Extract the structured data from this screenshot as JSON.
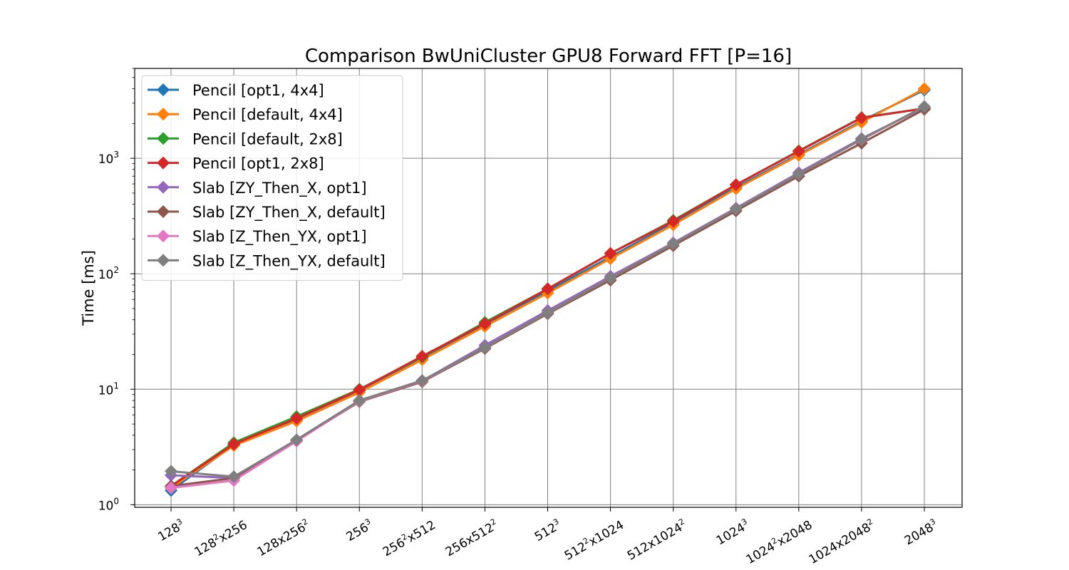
{
  "chart_data": {
    "type": "line",
    "title": "Comparison BwUniCluster GPU8 Forward FFT [P=16]",
    "xlabel": "",
    "ylabel": "Time [ms]",
    "yscale": "log",
    "ylim": [
      0.95,
      6000
    ],
    "grid": true,
    "legend": "upper-left",
    "categories": [
      {
        "base": "128",
        "sup": "3",
        "tail": "",
        "sup2": ""
      },
      {
        "base": "128",
        "sup": "2",
        "tail": "x256",
        "sup2": ""
      },
      {
        "base": "128x256",
        "sup": "2",
        "tail": "",
        "sup2": ""
      },
      {
        "base": "256",
        "sup": "3",
        "tail": "",
        "sup2": ""
      },
      {
        "base": "256",
        "sup": "2",
        "tail": "x512",
        "sup2": ""
      },
      {
        "base": "256x512",
        "sup": "2",
        "tail": "",
        "sup2": ""
      },
      {
        "base": "512",
        "sup": "3",
        "tail": "",
        "sup2": ""
      },
      {
        "base": "512",
        "sup": "2",
        "tail": "x1024",
        "sup2": ""
      },
      {
        "base": "512x1024",
        "sup": "2",
        "tail": "",
        "sup2": ""
      },
      {
        "base": "1024",
        "sup": "3",
        "tail": "",
        "sup2": ""
      },
      {
        "base": "1024",
        "sup": "2",
        "tail": "x2048",
        "sup2": ""
      },
      {
        "base": "1024x2048",
        "sup": "2",
        "tail": "",
        "sup2": ""
      },
      {
        "base": "2048",
        "sup": "3",
        "tail": "",
        "sup2": ""
      }
    ],
    "yticks": [
      {
        "value": 1,
        "base": "10",
        "exp": "0"
      },
      {
        "value": 10,
        "base": "10",
        "exp": "1"
      },
      {
        "value": 100,
        "base": "10",
        "exp": "2"
      },
      {
        "value": 1000,
        "base": "10",
        "exp": "3"
      }
    ],
    "series": [
      {
        "name": "Pencil [opt1, 4x4]",
        "color": "#1f77b4",
        "values": [
          1.33,
          3.3,
          5.4,
          9.7,
          18.5,
          36,
          71,
          140,
          275,
          560,
          1080,
          2100,
          3900
        ]
      },
      {
        "name": "Pencil [default, 4x4]",
        "color": "#ff7f0e",
        "values": [
          1.4,
          3.25,
          5.3,
          9.4,
          18,
          35,
          68,
          135,
          265,
          545,
          1060,
          2050,
          4000
        ]
      },
      {
        "name": "Pencil [default, 2x8]",
        "color": "#2ca02c",
        "values": [
          1.45,
          3.45,
          5.8,
          10,
          19,
          38,
          74,
          150,
          290,
          590,
          1160,
          2250,
          2700
        ]
      },
      {
        "name": "Pencil [opt1, 2x8]",
        "color": "#d62728",
        "values": [
          1.45,
          3.35,
          5.6,
          9.9,
          19.3,
          37,
          74,
          150,
          285,
          590,
          1150,
          2240,
          2700
        ]
      },
      {
        "name": "Slab [ZY_Then_X, opt1]",
        "color": "#9467bd",
        "values": [
          1.8,
          1.7,
          3.6,
          8.0,
          11.8,
          24,
          48,
          95,
          185,
          370,
          750,
          1480,
          2750
        ]
      },
      {
        "name": "Slab [ZY_Then_X, default]",
        "color": "#8c564b",
        "values": [
          1.45,
          1.7,
          3.6,
          7.8,
          11.6,
          22.5,
          45,
          88,
          175,
          350,
          700,
          1350,
          2650
        ]
      },
      {
        "name": "Slab [Z_Then_YX, opt1]",
        "color": "#e377c2",
        "values": [
          1.4,
          1.62,
          3.55,
          7.9,
          11.8,
          23,
          46,
          92,
          182,
          365,
          730,
          1450,
          2800
        ]
      },
      {
        "name": "Slab [Z_Then_YX, default]",
        "color": "#7f7f7f",
        "values": [
          1.95,
          1.75,
          3.65,
          8.0,
          11.9,
          23,
          46,
          92,
          182,
          365,
          730,
          1460,
          2800
        ]
      }
    ]
  }
}
